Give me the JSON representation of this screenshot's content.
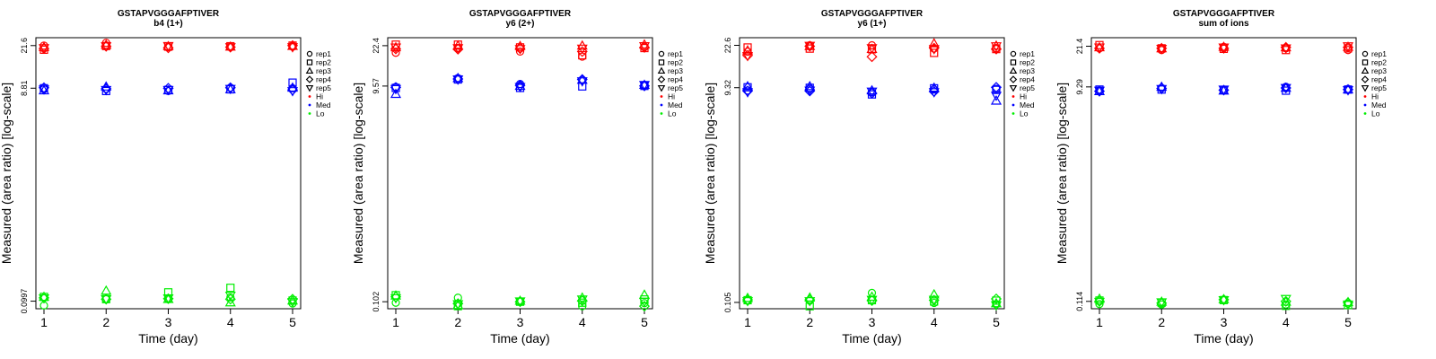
{
  "chart_data": [
    {
      "type": "scatter",
      "title": "GSTAPVGGGAFPTIVER",
      "subtitle": "b4 (1+)",
      "xlabel": "Time (day)",
      "ylabel": "Measured (area ratio) [log-scale]",
      "x_ticks": [
        1,
        2,
        3,
        4,
        5
      ],
      "y_ticks": [
        "0.0997",
        "8.81",
        "21.6"
      ],
      "y_scale": "log",
      "ylim": [
        0.085,
        25.5
      ],
      "legend": [
        "rep1",
        "rep2",
        "rep3",
        "rep4",
        "rep5",
        "Hi",
        "Med",
        "Lo"
      ],
      "legend_position": "right",
      "colors": {
        "Hi": "#ff0000",
        "Med": "#0000ff",
        "Lo": "#00ee00"
      },
      "series": [
        {
          "name": "Hi",
          "rep1": [
            21.6,
            22.9,
            20.9,
            20.9,
            21.1
          ],
          "rep2": [
            19.8,
            21.4,
            21.1,
            21.3,
            21.6
          ],
          "rep3": [
            20.9,
            21.9,
            21.3,
            21.1,
            21.4
          ],
          "rep4": [
            20.3,
            21.3,
            20.6,
            20.9,
            21.6
          ],
          "rep5": [
            20.5,
            21.3,
            21.4,
            20.9,
            20.9
          ]
        },
        {
          "name": "Med",
          "rep1": [
            8.6,
            8.7,
            8.3,
            8.9,
            8.8
          ],
          "rep2": [
            8.8,
            8.3,
            8.5,
            8.6,
            9.9
          ],
          "rep3": [
            8.4,
            9.1,
            8.4,
            8.6,
            8.9
          ],
          "rep4": [
            8.9,
            8.7,
            8.8,
            8.9,
            8.5
          ],
          "rep5": [
            8.6,
            8.5,
            8.5,
            8.7,
            8.3
          ]
        },
        {
          "name": "Lo",
          "rep1": [
            0.091,
            0.104,
            0.104,
            0.108,
            0.095
          ],
          "rep2": [
            0.109,
            0.104,
            0.12,
            0.132,
            0.101
          ],
          "rep3": [
            0.109,
            0.124,
            0.104,
            0.097,
            0.101
          ],
          "rep4": [
            0.107,
            0.104,
            0.105,
            0.104,
            0.104
          ],
          "rep5": [
            0.106,
            0.104,
            0.106,
            0.112,
            0.098
          ]
        }
      ]
    },
    {
      "type": "scatter",
      "title": "GSTAPVGGGAFPTIVER",
      "subtitle": "y6 (2+)",
      "xlabel": "Time (day)",
      "ylabel": "Measured (area ratio) [log-scale]",
      "x_ticks": [
        1,
        2,
        3,
        4,
        5
      ],
      "y_ticks": [
        "0.102",
        "9.57",
        "22.4"
      ],
      "y_scale": "log",
      "ylim": [
        0.088,
        26.5
      ],
      "legend": [
        "rep1",
        "rep2",
        "rep3",
        "rep4",
        "rep5",
        "Hi",
        "Med",
        "Lo"
      ],
      "legend_position": "right",
      "colors": {
        "Hi": "#ff0000",
        "Med": "#0000ff",
        "Lo": "#00ee00"
      },
      "series": [
        {
          "name": "Hi",
          "rep1": [
            19.3,
            21.3,
            19.8,
            17.8,
            21.9
          ],
          "rep2": [
            22.9,
            22.9,
            21.6,
            18.3,
            21.3
          ],
          "rep3": [
            21.6,
            22.4,
            22.2,
            22.4,
            22.9
          ],
          "rep4": [
            20.9,
            20.8,
            21.1,
            19.8,
            21.6
          ],
          "rep5": [
            21.6,
            21.3,
            20.9,
            21.1,
            22.2
          ]
        },
        {
          "name": "Med",
          "rep1": [
            9.4,
            11.3,
            10.0,
            10.9,
            9.8
          ],
          "rep2": [
            9.2,
            11.0,
            9.2,
            9.5,
            9.6
          ],
          "rep3": [
            8.1,
            11.3,
            9.6,
            10.9,
            9.8
          ],
          "rep4": [
            9.3,
            11.1,
            9.7,
            11.0,
            9.6
          ],
          "rep5": [
            9.0,
            11.0,
            9.4,
            10.6,
            9.8
          ]
        },
        {
          "name": "Lo",
          "rep1": [
            0.1,
            0.111,
            0.103,
            0.093,
            0.099
          ],
          "rep2": [
            0.117,
            0.093,
            0.102,
            0.1,
            0.107
          ],
          "rep3": [
            0.116,
            0.095,
            0.104,
            0.111,
            0.118
          ],
          "rep4": [
            0.113,
            0.098,
            0.102,
            0.104,
            0.093
          ],
          "rep5": [
            0.11,
            0.097,
            0.103,
            0.107,
            0.102
          ]
        }
      ]
    },
    {
      "type": "scatter",
      "title": "GSTAPVGGGAFPTIVER",
      "subtitle": "y6 (1+)",
      "xlabel": "Time (day)",
      "ylabel": "Measured (area ratio) [log-scale]",
      "x_ticks": [
        1,
        2,
        3,
        4,
        5
      ],
      "y_ticks": [
        "0.105",
        "9.32",
        "22.6"
      ],
      "y_scale": "log",
      "ylim": [
        0.092,
        26.5
      ],
      "legend": [
        "rep1",
        "rep2",
        "rep3",
        "rep4",
        "rep5",
        "Hi",
        "Med",
        "Lo"
      ],
      "legend_position": "right",
      "colors": {
        "Hi": "#ff0000",
        "Med": "#0000ff",
        "Lo": "#00ee00"
      },
      "series": [
        {
          "name": "Hi",
          "rep1": [
            19.8,
            22.6,
            22.6,
            21.1,
            21.3
          ],
          "rep2": [
            21.6,
            21.1,
            20.8,
            19.3,
            20.9
          ],
          "rep3": [
            20.3,
            22.2,
            20.9,
            23.5,
            22.4
          ],
          "rep4": [
            18.3,
            22.2,
            17.8,
            21.3,
            20.9
          ],
          "rep5": [
            18.1,
            22.4,
            21.3,
            20.9,
            22.2
          ]
        },
        {
          "name": "Med",
          "rep1": [
            8.8,
            9.1,
            8.5,
            9.0,
            9.1
          ],
          "rep2": [
            9.4,
            9.3,
            8.1,
            9.2,
            8.9
          ],
          "rep3": [
            9.6,
            9.6,
            8.8,
            9.3,
            7.1
          ],
          "rep4": [
            8.7,
            8.7,
            8.3,
            8.6,
            9.4
          ],
          "rep5": [
            8.5,
            8.8,
            8.6,
            8.5,
            7.9
          ]
        },
        {
          "name": "Lo",
          "rep1": [
            0.109,
            0.109,
            0.128,
            0.104,
            0.101
          ],
          "rep2": [
            0.11,
            0.097,
            0.11,
            0.107,
            0.109
          ],
          "rep3": [
            0.115,
            0.116,
            0.118,
            0.124,
            0.103
          ],
          "rep4": [
            0.111,
            0.111,
            0.109,
            0.11,
            0.113
          ],
          "rep5": [
            0.108,
            0.108,
            0.111,
            0.111,
            0.099
          ]
        }
      ]
    },
    {
      "type": "scatter",
      "title": "GSTAPVGGGAFPTIVER",
      "subtitle": "sum of ions",
      "xlabel": "Time (day)",
      "ylabel": "Measured (area ratio) [log-scale]",
      "x_ticks": [
        1,
        2,
        3,
        4,
        5
      ],
      "y_ticks": [
        "0.114",
        "9.29",
        "21.4"
      ],
      "y_scale": "log",
      "ylim": [
        0.098,
        25.5
      ],
      "legend": [
        "rep1",
        "rep2",
        "rep3",
        "rep4",
        "rep5",
        "Hi",
        "Med",
        "Lo"
      ],
      "legend_position": "right",
      "colors": {
        "Hi": "#ff0000",
        "Med": "#0000ff",
        "Lo": "#00ee00"
      },
      "series": [
        {
          "name": "Hi",
          "rep1": [
            20.5,
            19.8,
            21.1,
            20.5,
            19.8
          ],
          "rep2": [
            21.9,
            20.5,
            20.3,
            19.8,
            20.5
          ],
          "rep3": [
            20.9,
            20.5,
            21.1,
            20.9,
            21.1
          ],
          "rep4": [
            20.5,
            20.5,
            20.5,
            20.9,
            20.9
          ],
          "rep5": [
            20.9,
            20.3,
            20.9,
            20.5,
            21.4
          ]
        },
        {
          "name": "Med",
          "rep1": [
            8.6,
            9.1,
            8.7,
            9.3,
            8.9
          ],
          "rep2": [
            8.8,
            8.8,
            8.7,
            8.6,
            8.8
          ],
          "rep3": [
            8.5,
            9.3,
            8.6,
            9.1,
            8.8
          ],
          "rep4": [
            8.5,
            9.0,
            8.7,
            9.1,
            8.8
          ],
          "rep5": [
            8.6,
            8.9,
            8.8,
            9.1,
            8.7
          ]
        },
        {
          "name": "Lo",
          "rep1": [
            0.108,
            0.107,
            0.118,
            0.107,
            0.109
          ],
          "rep2": [
            0.116,
            0.111,
            0.117,
            0.104,
            0.106
          ],
          "rep3": [
            0.12,
            0.113,
            0.119,
            0.113,
            0.112
          ],
          "rep4": [
            0.114,
            0.11,
            0.118,
            0.114,
            0.111
          ],
          "rep5": [
            0.113,
            0.112,
            0.117,
            0.12,
            0.107
          ]
        }
      ]
    }
  ]
}
